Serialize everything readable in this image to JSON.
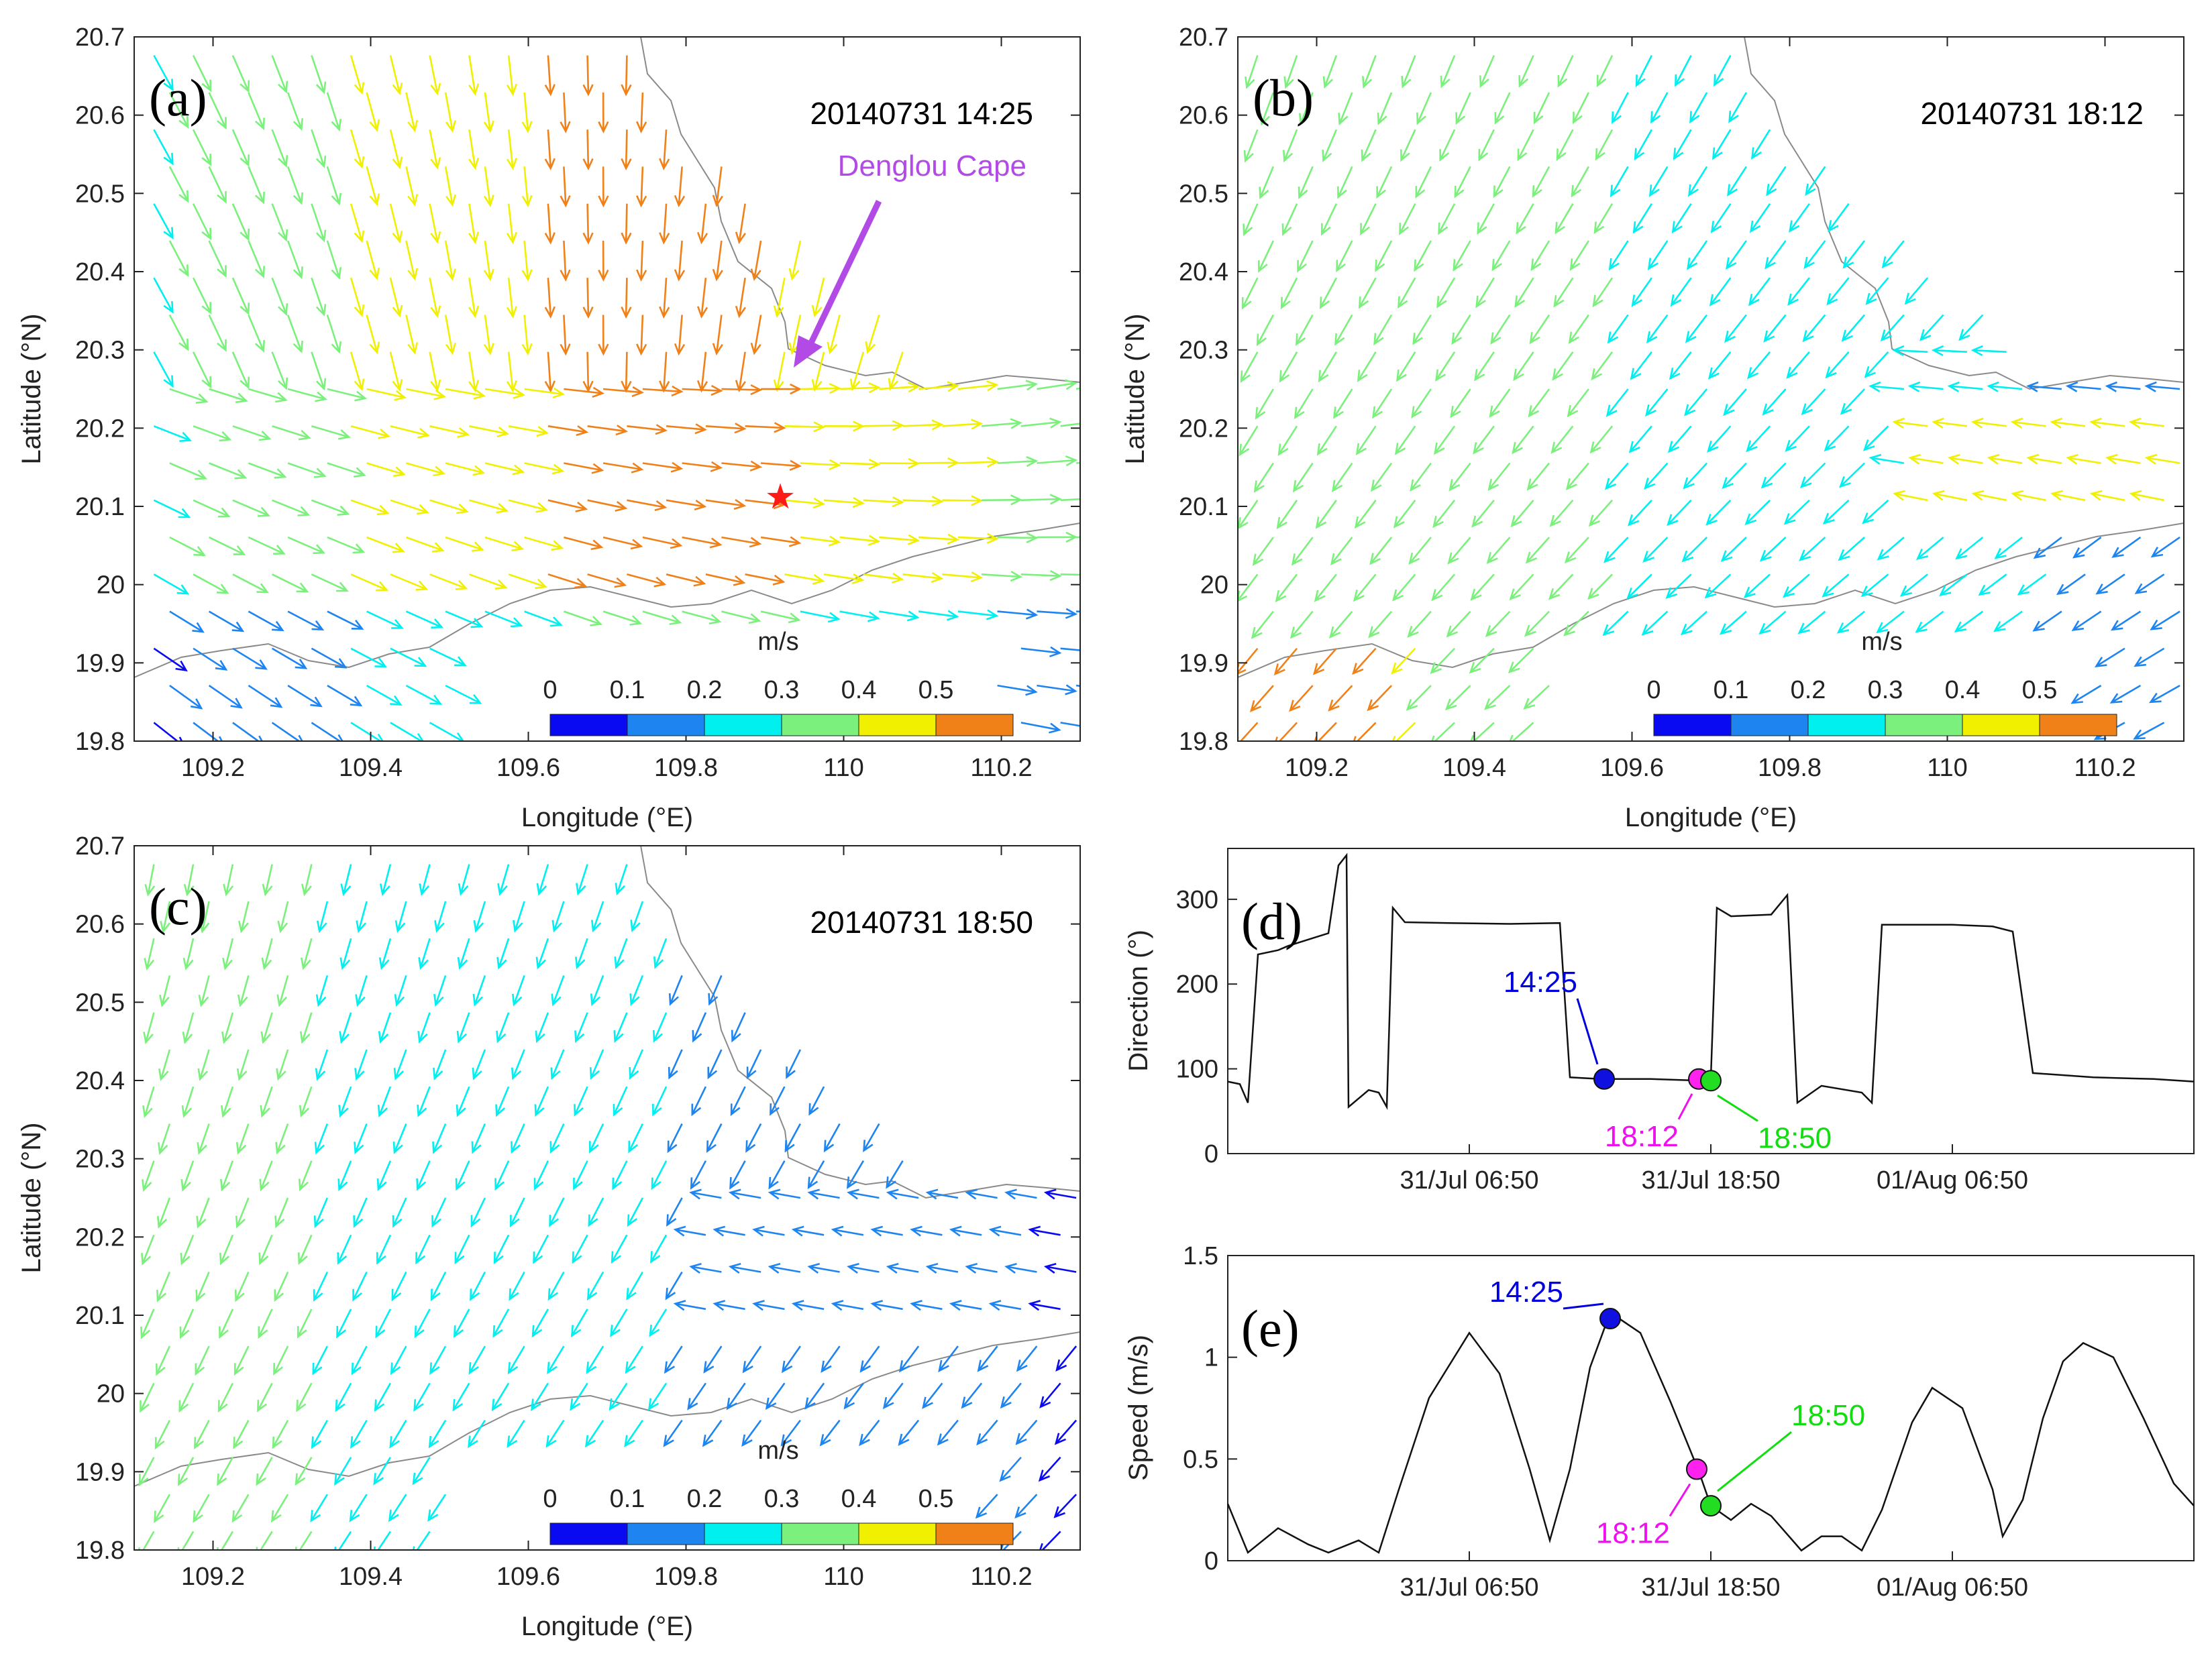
{
  "chart_data": [
    {
      "type": "vector-field",
      "panel": "(a)",
      "timestamp": "20140731 14:25",
      "xlabel": "Longitude (°E)",
      "ylabel": "Latitude (°N)",
      "xlim": [
        109.1,
        110.3
      ],
      "ylim": [
        19.8,
        20.7
      ],
      "xticks": [
        "109.2",
        "109.4",
        "109.6",
        "109.8",
        "110",
        "110.2"
      ],
      "yticks": [
        "19.8",
        "19.9",
        "20",
        "20.1",
        "20.2",
        "20.3",
        "20.4",
        "20.5",
        "20.6",
        "20.7"
      ],
      "annotation": {
        "text": "Denglou Cape",
        "color": "#b24be6",
        "lon": 109.93,
        "lat": 20.28
      },
      "marker": {
        "symbol": "★",
        "color": "#ff1a1a",
        "lon": 109.91,
        "lat": 20.11
      },
      "flow_regime": "strong"
    },
    {
      "type": "vector-field",
      "panel": "(b)",
      "timestamp": "20140731 18:12",
      "xlabel": "Longitude (°E)",
      "ylabel": "Latitude (°N)",
      "xlim": [
        109.1,
        110.3
      ],
      "ylim": [
        19.8,
        20.7
      ],
      "xticks": [
        "109.2",
        "109.4",
        "109.6",
        "109.8",
        "110",
        "110.2"
      ],
      "yticks": [
        "19.8",
        "19.9",
        "20",
        "20.1",
        "20.2",
        "20.3",
        "20.4",
        "20.5",
        "20.6",
        "20.7"
      ],
      "flow_regime": "reversing"
    },
    {
      "type": "vector-field",
      "panel": "(c)",
      "timestamp": "20140731 18:50",
      "xlabel": "Longitude (°E)",
      "ylabel": "Latitude (°N)",
      "xlim": [
        109.1,
        110.3
      ],
      "ylim": [
        19.8,
        20.7
      ],
      "xticks": [
        "109.2",
        "109.4",
        "109.6",
        "109.8",
        "110",
        "110.2"
      ],
      "yticks": [
        "19.8",
        "19.9",
        "20",
        "20.1",
        "20.2",
        "20.3",
        "20.4",
        "20.5",
        "20.6",
        "20.7"
      ],
      "flow_regime": "weak"
    },
    {
      "type": "line",
      "panel": "(d)",
      "ylabel": "Direction (°)",
      "ylim": [
        0,
        360
      ],
      "yticks": [
        "0",
        "100",
        "200",
        "300"
      ],
      "xlim": [
        0,
        48
      ],
      "xticks": [
        {
          "x": 12,
          "label": "31/Jul 06:50"
        },
        {
          "x": 24,
          "label": "31/Jul 18:50"
        },
        {
          "x": 36,
          "label": "01/Aug 06:50"
        }
      ],
      "series": [
        {
          "name": "direction",
          "points": [
            [
              0,
              85
            ],
            [
              0.6,
              82
            ],
            [
              1,
              60
            ],
            [
              1.5,
              235
            ],
            [
              2.5,
              240
            ],
            [
              3,
              245
            ],
            [
              5,
              260
            ],
            [
              5.5,
              340
            ],
            [
              5.9,
              352
            ],
            [
              6,
              55
            ],
            [
              7,
              75
            ],
            [
              7.5,
              72
            ],
            [
              7.9,
              55
            ],
            [
              8.2,
              290
            ],
            [
              8.8,
              273
            ],
            [
              11,
              272
            ],
            [
              14,
              271
            ],
            [
              16.5,
              272
            ],
            [
              17,
              90
            ],
            [
              18.5,
              88
            ],
            [
              21,
              88
            ],
            [
              23.5,
              86
            ],
            [
              24,
              90
            ],
            [
              24.3,
              290
            ],
            [
              25,
              280
            ],
            [
              27,
              282
            ],
            [
              27.8,
              305
            ],
            [
              28.3,
              60
            ],
            [
              29.5,
              80
            ],
            [
              31.5,
              72
            ],
            [
              32,
              60
            ],
            [
              32.5,
              270
            ],
            [
              33.5,
              270
            ],
            [
              36,
              270
            ],
            [
              38,
              268
            ],
            [
              39,
              262
            ],
            [
              40,
              95
            ],
            [
              43,
              90
            ],
            [
              46,
              88
            ],
            [
              48,
              85
            ]
          ]
        }
      ],
      "markers": [
        {
          "label": "14:25",
          "x": 18.7,
          "y": 88,
          "color": "#1010e0",
          "text_color": "#0000dd"
        },
        {
          "label": "18:12",
          "x": 23.4,
          "y": 88,
          "color": "#ff22ee",
          "text_color": "#ee11ee"
        },
        {
          "label": "18:50",
          "x": 24.0,
          "y": 86,
          "color": "#22dd22",
          "text_color": "#11dd11"
        }
      ]
    },
    {
      "type": "line",
      "panel": "(e)",
      "ylabel": "Speed (m/s)",
      "ylim": [
        0,
        1.5
      ],
      "yticks": [
        "0",
        "0.5",
        "1",
        "1.5"
      ],
      "xlim": [
        0,
        48
      ],
      "xticks": [
        {
          "x": 12,
          "label": "31/Jul 06:50"
        },
        {
          "x": 24,
          "label": "31/Jul 18:50"
        },
        {
          "x": 36,
          "label": "01/Aug 06:50"
        }
      ],
      "series": [
        {
          "name": "speed",
          "points": [
            [
              0,
              0.28
            ],
            [
              1,
              0.04
            ],
            [
              2.5,
              0.16
            ],
            [
              4,
              0.08
            ],
            [
              5,
              0.04
            ],
            [
              6.5,
              0.1
            ],
            [
              7.5,
              0.04
            ],
            [
              8.5,
              0.35
            ],
            [
              10,
              0.8
            ],
            [
              12,
              1.12
            ],
            [
              13.5,
              0.92
            ],
            [
              15,
              0.45
            ],
            [
              16,
              0.1
            ],
            [
              17,
              0.45
            ],
            [
              18,
              0.95
            ],
            [
              19,
              1.22
            ],
            [
              20.5,
              1.12
            ],
            [
              22,
              0.78
            ],
            [
              23.4,
              0.44
            ],
            [
              24,
              0.27
            ],
            [
              25,
              0.2
            ],
            [
              26,
              0.28
            ],
            [
              27,
              0.22
            ],
            [
              28.5,
              0.05
            ],
            [
              29.5,
              0.12
            ],
            [
              30.5,
              0.12
            ],
            [
              31.5,
              0.05
            ],
            [
              32.5,
              0.25
            ],
            [
              34,
              0.68
            ],
            [
              35,
              0.85
            ],
            [
              36.5,
              0.75
            ],
            [
              38,
              0.35
            ],
            [
              38.5,
              0.12
            ],
            [
              39.5,
              0.3
            ],
            [
              40.5,
              0.7
            ],
            [
              41.5,
              0.98
            ],
            [
              42.5,
              1.07
            ],
            [
              44,
              1.0
            ],
            [
              45.5,
              0.7
            ],
            [
              47,
              0.38
            ],
            [
              48,
              0.27
            ]
          ]
        }
      ],
      "markers": [
        {
          "label": "14:25",
          "x": 19.0,
          "y": 1.19,
          "color": "#1010e0",
          "text_color": "#0000dd"
        },
        {
          "label": "18:12",
          "x": 23.3,
          "y": 0.45,
          "color": "#ff22ee",
          "text_color": "#ee11ee"
        },
        {
          "label": "18:50",
          "x": 24.0,
          "y": 0.27,
          "color": "#22dd22",
          "text_color": "#11dd11"
        }
      ]
    }
  ],
  "colorbar": {
    "unit": "m/s",
    "ticks": [
      "0",
      "0.1",
      "0.2",
      "0.3",
      "0.4",
      "0.5"
    ],
    "colors": [
      "#0a0af2",
      "#1e84f0",
      "#00f0f0",
      "#7cf07c",
      "#f0f000",
      "#f08018"
    ]
  }
}
